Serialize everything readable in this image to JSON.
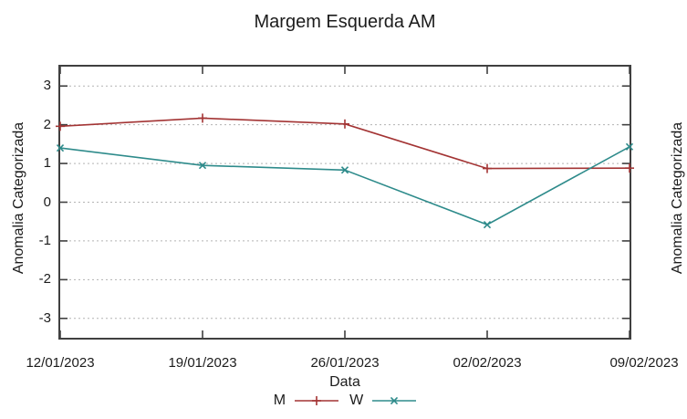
{
  "title": "Margem Esquerda AM",
  "chart_data": {
    "type": "line",
    "title": "Margem Esquerda AM",
    "xlabel": "Data",
    "ylabel": "Anomalia Categorizada",
    "categories": [
      "12/01/2023",
      "19/01/2023",
      "26/01/2023",
      "02/02/2023",
      "09/02/2023"
    ],
    "yticks": [
      3,
      2,
      1,
      0,
      -1,
      -2,
      -3
    ],
    "ylim": [
      -3.5,
      3.5
    ],
    "grid": "horizontal-dashed",
    "legend_position": "bottom-center",
    "series": [
      {
        "name": "M",
        "marker": "plus",
        "color": "#a33434",
        "values": [
          1.96,
          2.17,
          2.02,
          0.87,
          0.88
        ]
      },
      {
        "name": "W",
        "marker": "cross",
        "color": "#2e8b8b",
        "values": [
          1.4,
          0.95,
          0.83,
          -0.58,
          1.43
        ]
      }
    ]
  },
  "partial_right_chart": {
    "ylabel": "Anomalia Categorizada"
  },
  "style_colors": {
    "grid": "#b3b3b3",
    "border": "#404040",
    "text": "#1c1c1c"
  }
}
